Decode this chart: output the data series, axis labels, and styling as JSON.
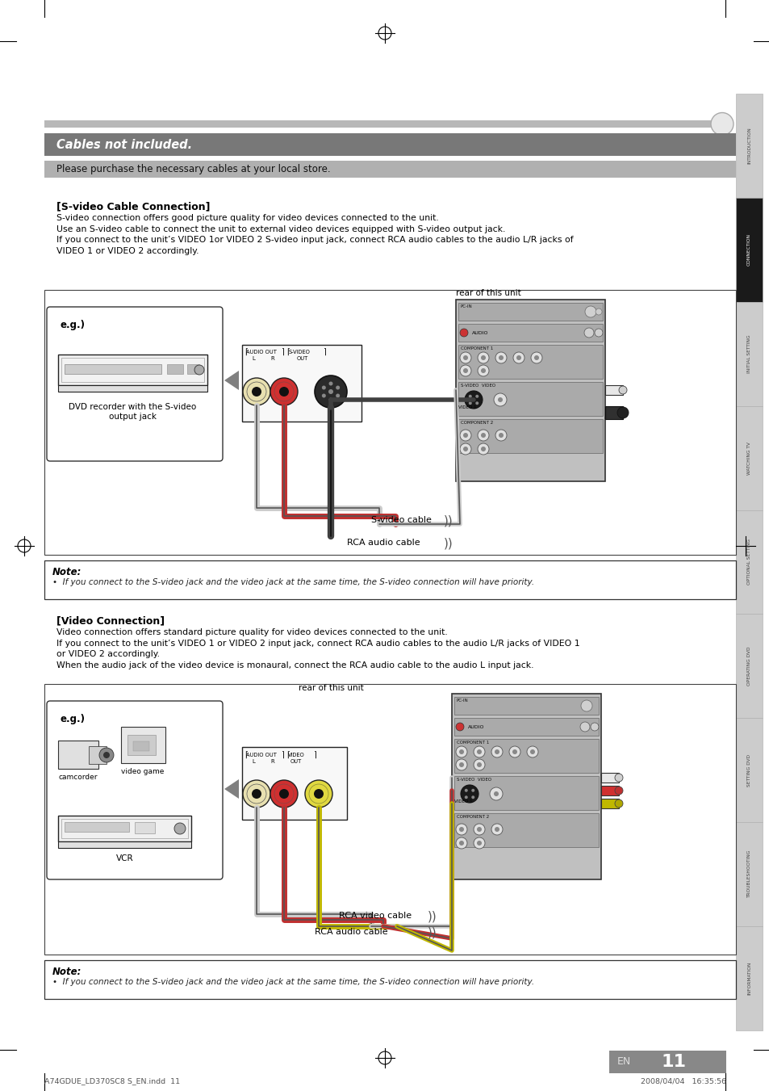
{
  "page_bg": "#ffffff",
  "title_bar_color": "#808080",
  "subtitle_bar_color": "#a0a0a0",
  "title_text": "Cables not included.",
  "subtitle_text": "Please purchase the necessary cables at your local store.",
  "section1_header": "[S-video Cable Connection]",
  "section1_body": "S-video connection offers good picture quality for video devices connected to the unit.\nUse an S-video cable to connect the unit to external video devices equipped with S-video output jack.\nIf you connect to the unit’s VIDEO 1or VIDEO 2 S-video input jack, connect RCA audio cables to the audio L/R jacks of\nVIDEO 1 or VIDEO 2 accordingly.",
  "section2_header": "[Video Connection]",
  "section2_body": "Video connection offers standard picture quality for video devices connected to the unit.\nIf you connect to the unit’s VIDEO 1 or VIDEO 2 input jack, connect RCA audio cables to the audio L/R jacks of VIDEO 1\nor VIDEO 2 accordingly.\nWhen the audio jack of the video device is monaural, connect the RCA audio cable to the audio L input jack.",
  "note1_text_header": "Note:",
  "note1_text_body": "•  If you connect to the S-video jack and the video jack at the same time, the S-video connection will have priority.",
  "note2_text_header": "Note:",
  "note2_text_body": "•  If you connect to the S-video jack and the video jack at the same time, the S-video connection will have priority.",
  "eg1_label": "e.g.)",
  "eg1_sublabel": "DVD recorder with the S-video\noutput jack",
  "eg2_label": "e.g.)",
  "eg2_sublabel1": "camcorder",
  "eg2_sublabel2": "video game",
  "eg2_sublabel3": "VCR",
  "rear_label": "rear of this unit",
  "svideo_cable_label": "S-video cable",
  "rca_audio_label1": "RCA audio cable",
  "rca_video_label": "RCA video cable",
  "rca_audio_label2": "RCA audio cable",
  "page_number": "11",
  "page_en": "EN",
  "sidebar_labels": [
    "INTRODUCTION",
    "CONNECTION",
    "INITIAL SETTING",
    "WATCHING TV",
    "OPTIONAL SETTING",
    "OPERATING DVD",
    "SETTING DVD",
    "TROUBLESHOOTING",
    "INFORMATION"
  ],
  "footer_left": "A74GDUE_LD370SC8 S_EN.indd  11",
  "footer_right": "2008/04/04   16:35:56",
  "note_bg": "#ffffff"
}
